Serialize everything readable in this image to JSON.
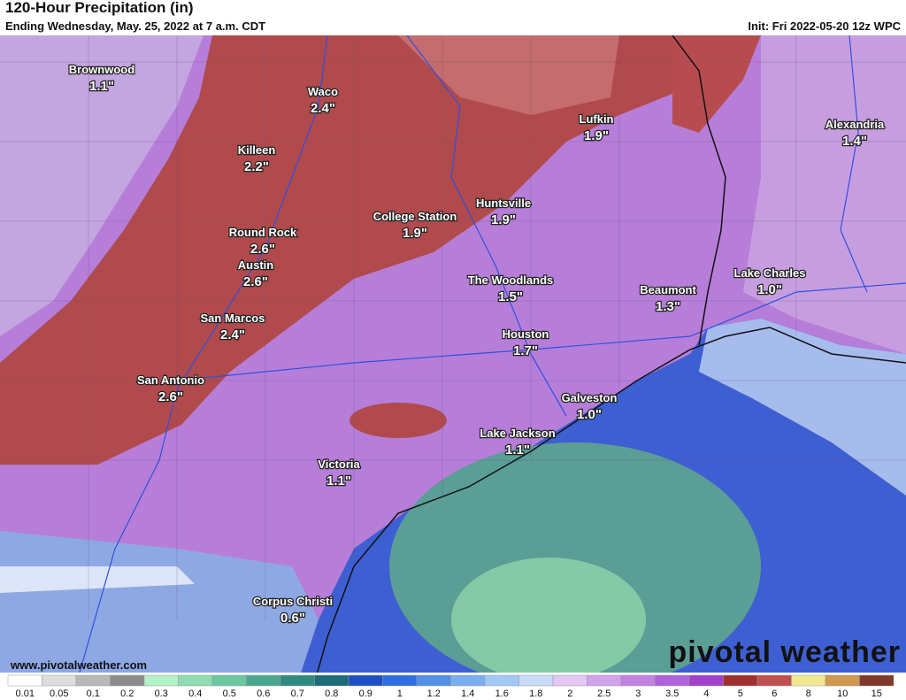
{
  "header": {
    "title": "120-Hour Precipitation (in)",
    "subtitle": "Ending Wednesday, May. 25, 2022 at 7 a.m. CDT",
    "init": "Init: Fri 2022-05-20 12z WPC"
  },
  "cities": [
    {
      "name": "Brownwood",
      "amount": "1.1\""
    },
    {
      "name": "Waco",
      "amount": "2.4\""
    },
    {
      "name": "Killeen",
      "amount": "2.2\""
    },
    {
      "name": "Round Rock",
      "amount": "2.6\""
    },
    {
      "name": "Austin",
      "amount": "2.6\""
    },
    {
      "name": "San Marcos",
      "amount": "2.4\""
    },
    {
      "name": "San Antonio",
      "amount": "2.6\""
    },
    {
      "name": "College Station",
      "amount": "1.9\""
    },
    {
      "name": "Huntsville",
      "amount": "1.9\""
    },
    {
      "name": "Lufkin",
      "amount": "1.9\""
    },
    {
      "name": "Alexandria",
      "amount": "1.4\""
    },
    {
      "name": "The Woodlands",
      "amount": "1.5\""
    },
    {
      "name": "Beaumont",
      "amount": "1.3\""
    },
    {
      "name": "Lake Charles",
      "amount": "1.0\""
    },
    {
      "name": "Houston",
      "amount": "1.7\""
    },
    {
      "name": "Galveston",
      "amount": "1.0\""
    },
    {
      "name": "Lake Jackson",
      "amount": "1.1\""
    },
    {
      "name": "Victoria",
      "amount": "1.1\""
    },
    {
      "name": "Corpus Christi",
      "amount": "0.6\""
    }
  ],
  "legend": {
    "labels": [
      "0.01",
      "0.05",
      "0.1",
      "0.2",
      "0.3",
      "0.4",
      "0.5",
      "0.6",
      "0.7",
      "0.8",
      "0.9",
      "1",
      "1.2",
      "1.4",
      "1.6",
      "1.8",
      "2",
      "2.5",
      "3",
      "3.5",
      "4",
      "5",
      "6",
      "8",
      "10",
      "15"
    ],
    "colors": [
      "#ffffff",
      "#dddddd",
      "#b8b8b8",
      "#8c8c8c",
      "#b4f0c8",
      "#8edcb0",
      "#6cc6a0",
      "#4aa88e",
      "#2e8a80",
      "#1c6b78",
      "#1f4fc4",
      "#2f6ee0",
      "#5290e8",
      "#7aaef0",
      "#a2c8f4",
      "#c8dcf8",
      "#e2c8f2",
      "#d2a2ea",
      "#c282e2",
      "#b062da",
      "#a040cc",
      "#a03030",
      "#c05050",
      "#f0e890",
      "#d09850",
      "#803828"
    ]
  },
  "footer": {
    "website": "www.pivotalweather.com",
    "logo": "pivotal weather"
  }
}
